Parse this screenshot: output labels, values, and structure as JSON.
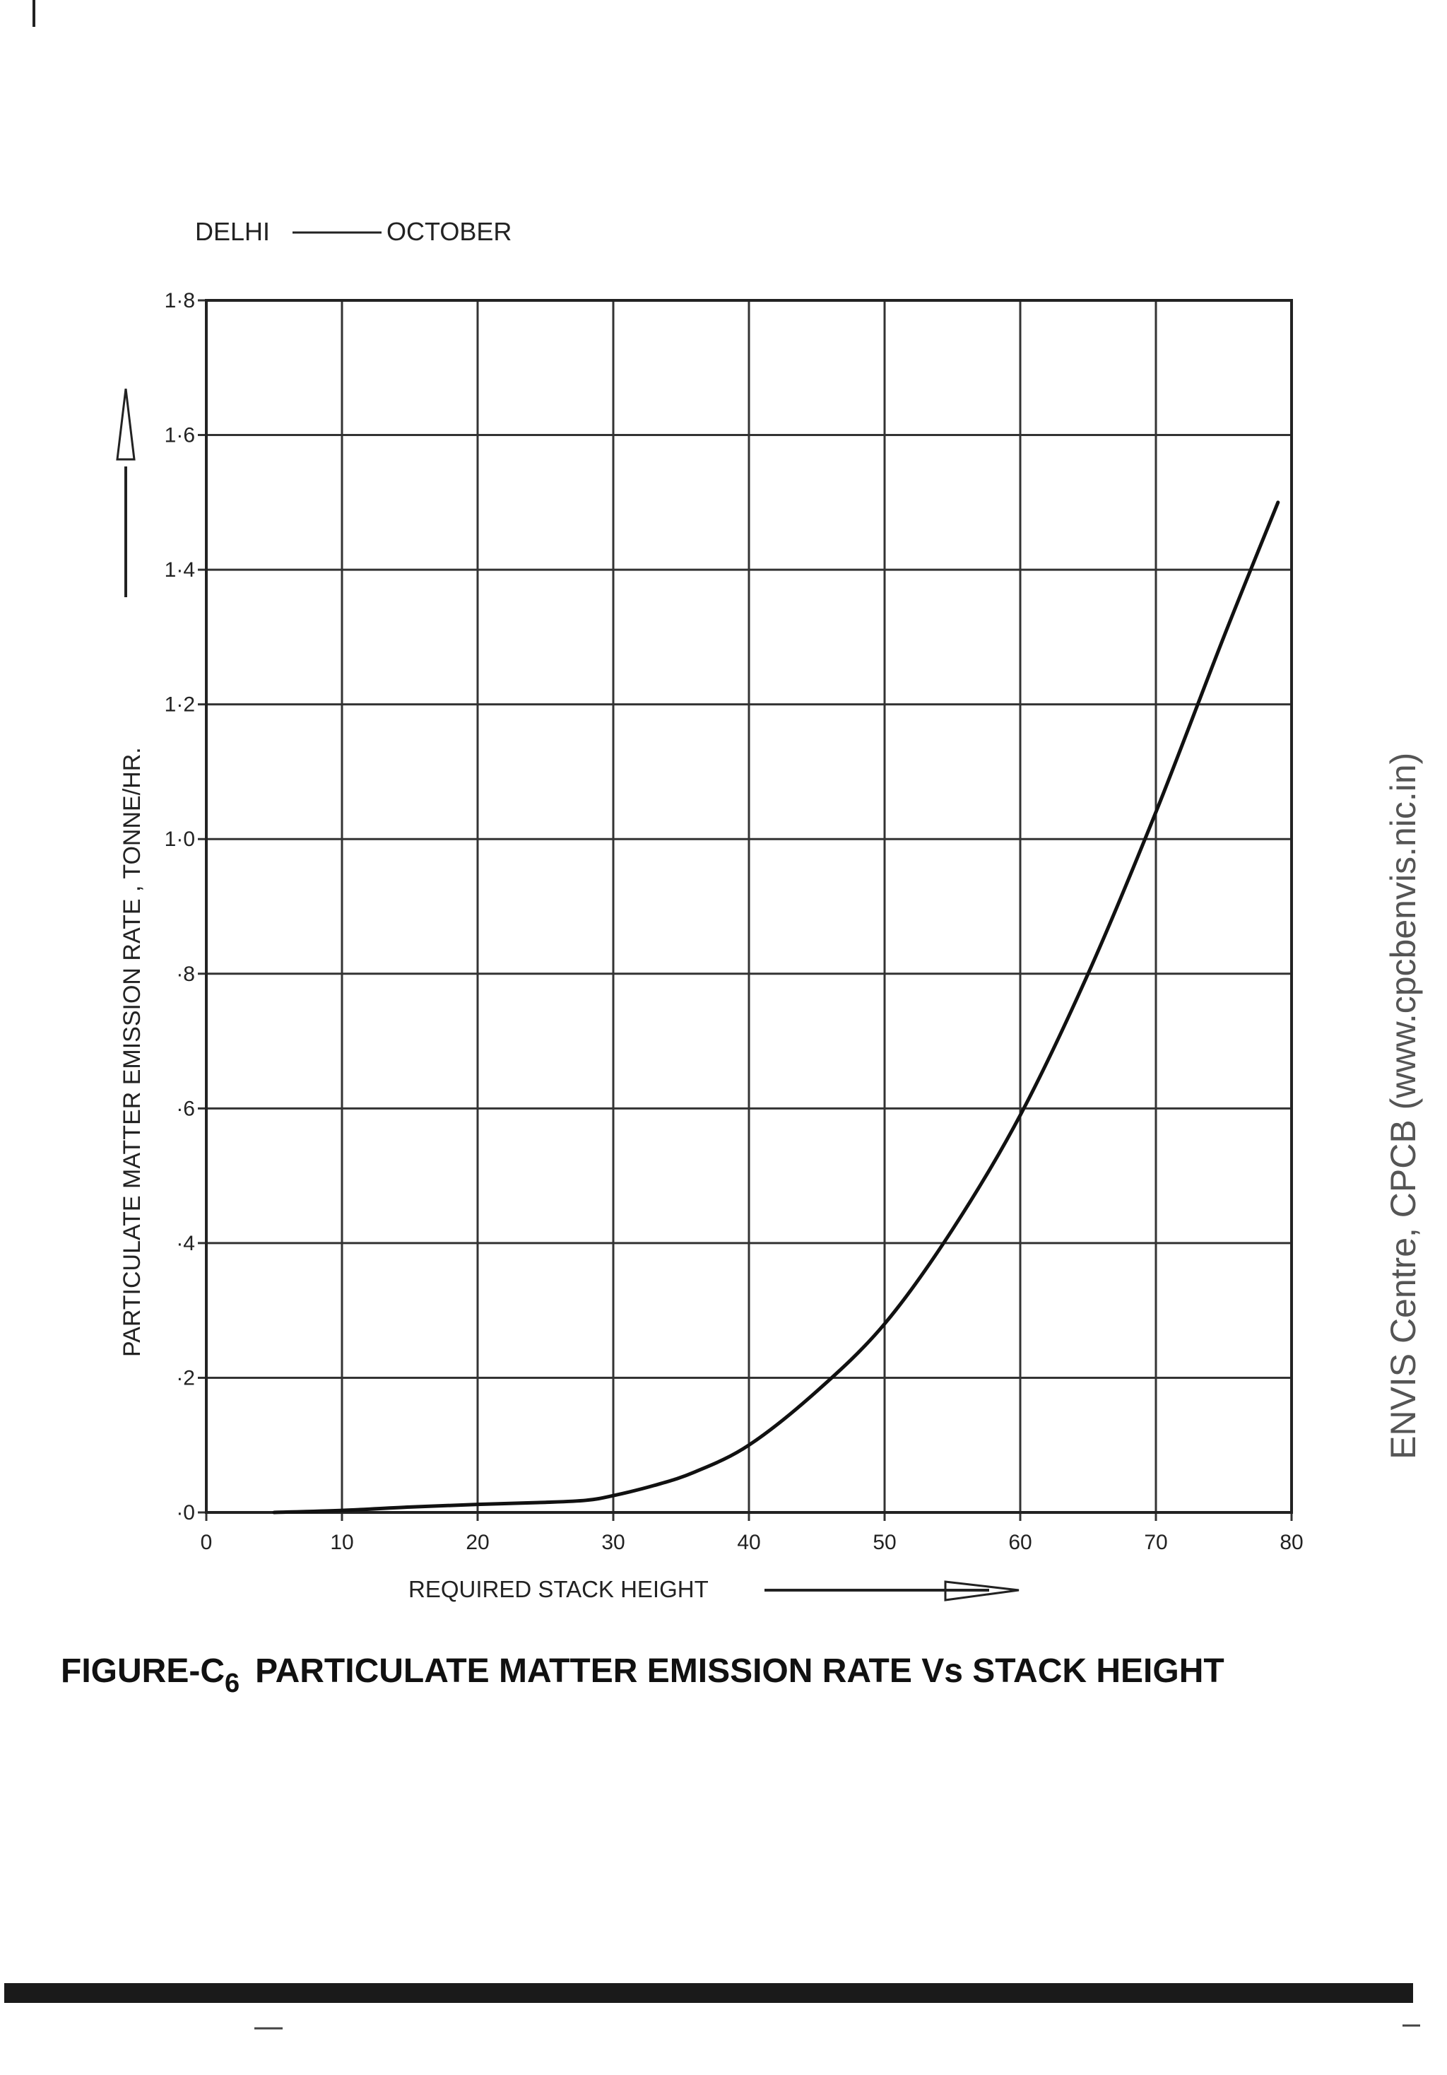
{
  "chart_data": {
    "type": "line",
    "legend_text": "DELHI —— OCTOBER",
    "legend_city": "DELHI",
    "legend_month": "OCTOBER",
    "xlabel": "REQUIRED STACK HEIGHT",
    "ylabel": "PARTICULATE MATTER EMISSION RATE , TONNE/HR.",
    "xlim": [
      0,
      80
    ],
    "ylim": [
      0,
      1.8
    ],
    "grid": true,
    "x_ticks": [
      0,
      10,
      20,
      30,
      40,
      50,
      60,
      70,
      80
    ],
    "x_tick_labels": [
      "0",
      "10",
      "20",
      "30",
      "40",
      "50",
      "60",
      "70",
      "80"
    ],
    "y_ticks": [
      0,
      0.2,
      0.4,
      0.6,
      0.8,
      1.0,
      1.2,
      1.4,
      1.6,
      1.8
    ],
    "y_tick_labels": [
      "·0",
      "·2",
      "·4",
      "·6",
      "·8",
      "1·0",
      "1·2",
      "1·4",
      "1·6",
      "1·8"
    ],
    "series": [
      {
        "name": "DELHI — OCTOBER",
        "x": [
          5,
          10,
          15,
          20,
          25,
          28,
          30,
          33,
          36,
          40,
          45,
          50,
          55,
          60,
          65,
          70,
          75,
          79
        ],
        "y": [
          0.0,
          0.003,
          0.008,
          0.012,
          0.015,
          0.018,
          0.025,
          0.04,
          0.06,
          0.1,
          0.18,
          0.28,
          0.42,
          0.59,
          0.8,
          1.04,
          1.3,
          1.5
        ]
      }
    ]
  },
  "caption": {
    "prefix": "FIGURE-C",
    "subscript": "6",
    "text": "PARTICULATE MATTER EMISSION RATE Vs  STACK HEIGHT"
  },
  "watermark": "ENVIS Centre, CPCB (www.cpcbenvis.nic.in)"
}
